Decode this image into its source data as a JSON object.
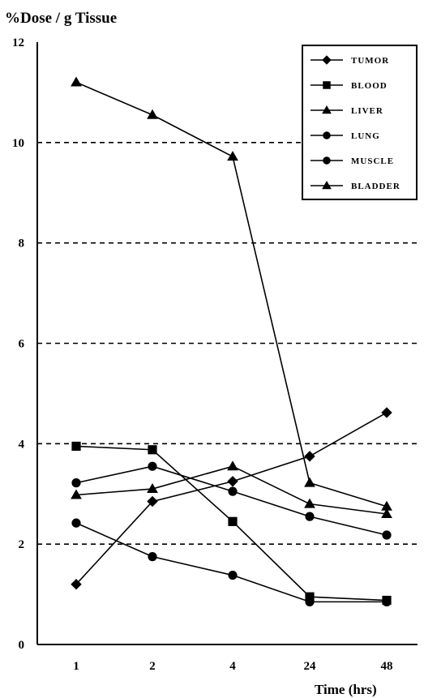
{
  "chart_data": {
    "type": "line",
    "ylabel": "%Dose / g Tissue",
    "xlabel": "Time (hrs)",
    "categories": [
      "1",
      "2",
      "4",
      "24",
      "48"
    ],
    "ylim": [
      0,
      12
    ],
    "yticks": [
      "0",
      "2",
      "4",
      "6",
      "8",
      "10",
      "12"
    ],
    "grid": "dashed horizontal at 2, 4, 6, 8, 10",
    "legend_position": "top-right",
    "series": [
      {
        "name": "TUMOR",
        "marker": "diamond",
        "values": [
          1.2,
          2.85,
          3.25,
          3.75,
          4.62
        ]
      },
      {
        "name": "BLOOD",
        "marker": "square",
        "values": [
          3.95,
          3.88,
          2.45,
          0.95,
          0.88
        ]
      },
      {
        "name": "LIVER",
        "marker": "triangle",
        "values": [
          2.98,
          3.1,
          3.55,
          2.8,
          2.6
        ]
      },
      {
        "name": "LUNG",
        "marker": "circle",
        "values": [
          2.42,
          1.75,
          1.38,
          0.85,
          0.85
        ]
      },
      {
        "name": "MUSCLE",
        "marker": "circle",
        "values": [
          3.22,
          3.55,
          3.05,
          2.55,
          2.18
        ]
      },
      {
        "name": "BLADDER",
        "marker": "triangle",
        "values": [
          11.2,
          10.55,
          9.72,
          3.22,
          2.75
        ]
      }
    ]
  }
}
